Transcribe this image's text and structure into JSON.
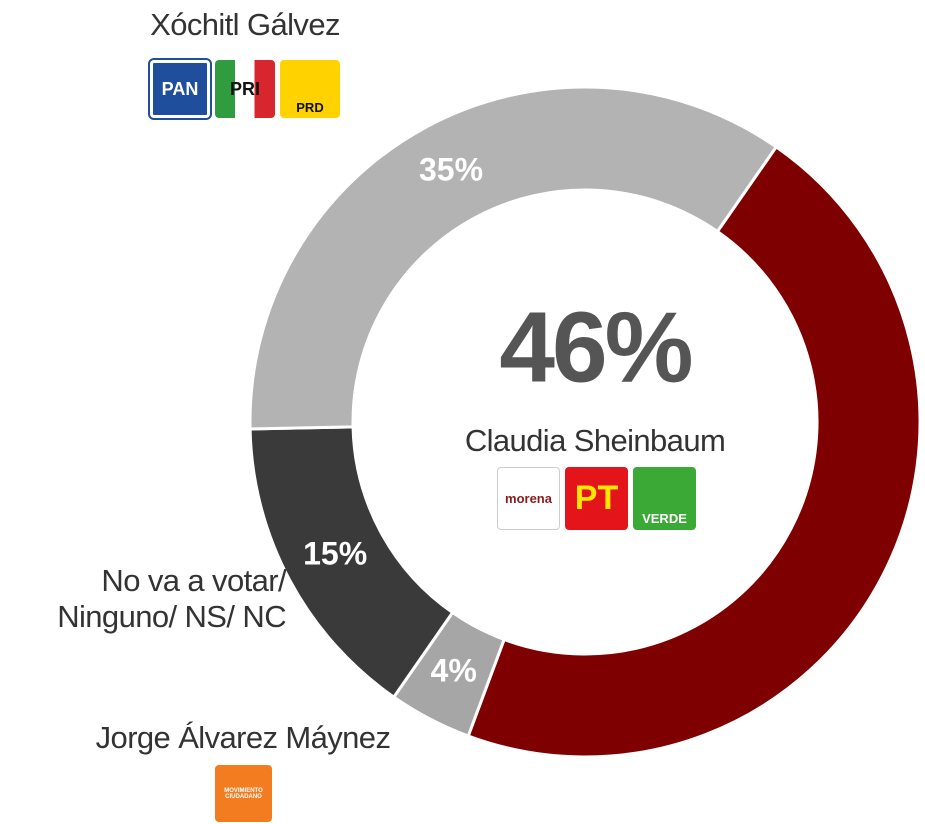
{
  "chart_data": {
    "type": "donut",
    "categories": [
      "Claudia Sheinbaum",
      "Jorge Álvarez Máynez",
      "No va a votar/\nNinguno/ NS/ NC",
      "Xóchitl Gálvez"
    ],
    "values": [
      46,
      4,
      15,
      35
    ],
    "value_labels": [
      "46%",
      "4%",
      "15%",
      "35%"
    ],
    "colors": [
      "#7f0000",
      "#a6a6a6",
      "#3a3a3a",
      "#b3b3b3"
    ],
    "logos": [
      [
        "morena",
        "PT",
        "VERDE"
      ],
      [
        "MOVIMIENTO CIUDADANO"
      ],
      null,
      [
        "PAN",
        "PRI",
        "PRD"
      ]
    ]
  }
}
